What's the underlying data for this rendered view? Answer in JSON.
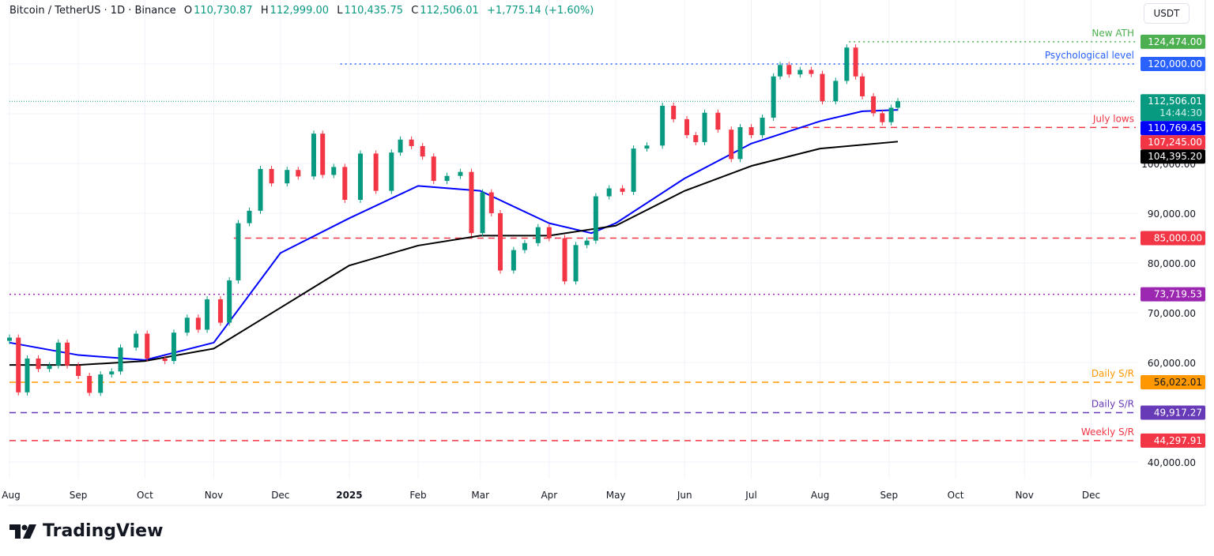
{
  "header": {
    "symbol": "Bitcoin / TetherUS · 1D · Binance",
    "open_label": "O",
    "open": "110,730.87",
    "high_label": "H",
    "high": "112,999.00",
    "low_label": "L",
    "low": "110,435.75",
    "close_label": "C",
    "close": "112,506.01",
    "change": "+1,775.14 (+1.60%)",
    "currency": "USDT"
  },
  "brand": {
    "name": "TradingView"
  },
  "chart_data": {
    "type": "candlestick",
    "title": "Bitcoin / TetherUS · 1D · Binance",
    "ylim": [
      35000,
      130000
    ],
    "y_ticks": [
      40000,
      60000,
      70000,
      80000,
      90000,
      100000
    ],
    "y_tick_labels": [
      "40,000.00",
      "60,000.00",
      "70,000.00",
      "80,000.00",
      "90,000.00",
      "100,000.00"
    ],
    "x_ticks": [
      {
        "date": "2024-08-01",
        "label": "Aug"
      },
      {
        "date": "2024-09-01",
        "label": "Sep"
      },
      {
        "date": "2024-10-01",
        "label": "Oct"
      },
      {
        "date": "2024-11-01",
        "label": "Nov"
      },
      {
        "date": "2024-12-01",
        "label": "Dec"
      },
      {
        "date": "2025-01-01",
        "label": "2025"
      },
      {
        "date": "2025-02-01",
        "label": "Feb"
      },
      {
        "date": "2025-03-01",
        "label": "Mar"
      },
      {
        "date": "2025-04-01",
        "label": "Apr"
      },
      {
        "date": "2025-05-01",
        "label": "May"
      },
      {
        "date": "2025-06-01",
        "label": "Jun"
      },
      {
        "date": "2025-07-01",
        "label": "Jul"
      },
      {
        "date": "2025-08-01",
        "label": "Aug"
      },
      {
        "date": "2025-09-01",
        "label": "Sep"
      },
      {
        "date": "2025-10-01",
        "label": "Oct"
      },
      {
        "date": "2025-11-01",
        "label": "Nov"
      },
      {
        "date": "2025-12-01",
        "label": "Dec"
      }
    ],
    "grid": true,
    "colors": {
      "up": "#089981",
      "down": "#f23645"
    },
    "price": [
      [
        "2024-08-01",
        65000
      ],
      [
        "2024-08-05",
        54000
      ],
      [
        "2024-08-09",
        60800
      ],
      [
        "2024-08-14",
        58700
      ],
      [
        "2024-08-19",
        59400
      ],
      [
        "2024-08-23",
        64000
      ],
      [
        "2024-08-27",
        59400
      ],
      [
        "2024-09-01",
        57300
      ],
      [
        "2024-09-06",
        53900
      ],
      [
        "2024-09-11",
        57600
      ],
      [
        "2024-09-16",
        58200
      ],
      [
        "2024-09-20",
        63000
      ],
      [
        "2024-09-27",
        65800
      ],
      [
        "2024-10-02",
        60800
      ],
      [
        "2024-10-10",
        60300
      ],
      [
        "2024-10-14",
        66000
      ],
      [
        "2024-10-20",
        69000
      ],
      [
        "2024-10-25",
        66600
      ],
      [
        "2024-10-29",
        72700
      ],
      [
        "2024-11-04",
        68000
      ],
      [
        "2024-11-08",
        76500
      ],
      [
        "2024-11-12",
        88000
      ],
      [
        "2024-11-17",
        90500
      ],
      [
        "2024-11-22",
        98900
      ],
      [
        "2024-11-27",
        96000
      ],
      [
        "2024-12-04",
        98700
      ],
      [
        "2024-12-09",
        97400
      ],
      [
        "2024-12-16",
        106000
      ],
      [
        "2024-12-20",
        97700
      ],
      [
        "2024-12-25",
        99300
      ],
      [
        "2024-12-30",
        92700
      ],
      [
        "2025-01-06",
        102000
      ],
      [
        "2025-01-13",
        94500
      ],
      [
        "2025-01-20",
        102200
      ],
      [
        "2025-01-24",
        104800
      ],
      [
        "2025-01-29",
        103500
      ],
      [
        "2025-02-03",
        101400
      ],
      [
        "2025-02-08",
        96500
      ],
      [
        "2025-02-14",
        97500
      ],
      [
        "2025-02-20",
        98300
      ],
      [
        "2025-02-25",
        86000
      ],
      [
        "2025-03-02",
        94200
      ],
      [
        "2025-03-06",
        90000
      ],
      [
        "2025-03-10",
        78500
      ],
      [
        "2025-03-16",
        82600
      ],
      [
        "2025-03-21",
        84000
      ],
      [
        "2025-03-27",
        87200
      ],
      [
        "2025-04-01",
        85000
      ],
      [
        "2025-04-08",
        76300
      ],
      [
        "2025-04-13",
        83600
      ],
      [
        "2025-04-18",
        84500
      ],
      [
        "2025-04-22",
        93400
      ],
      [
        "2025-04-28",
        95000
      ],
      [
        "2025-05-04",
        94300
      ],
      [
        "2025-05-09",
        103000
      ],
      [
        "2025-05-15",
        103600
      ],
      [
        "2025-05-22",
        111600
      ],
      [
        "2025-05-27",
        108900
      ],
      [
        "2025-06-02",
        105700
      ],
      [
        "2025-06-06",
        104300
      ],
      [
        "2025-06-10",
        110200
      ],
      [
        "2025-06-16",
        106800
      ],
      [
        "2025-06-22",
        100900
      ],
      [
        "2025-06-26",
        107300
      ],
      [
        "2025-07-01",
        105700
      ],
      [
        "2025-07-06",
        109200
      ],
      [
        "2025-07-11",
        117500
      ],
      [
        "2025-07-14",
        119800
      ],
      [
        "2025-07-18",
        117900
      ],
      [
        "2025-07-23",
        118800
      ],
      [
        "2025-07-28",
        118000
      ],
      [
        "2025-08-02",
        112500
      ],
      [
        "2025-08-08",
        116600
      ],
      [
        "2025-08-13",
        123300
      ],
      [
        "2025-08-17",
        117500
      ],
      [
        "2025-08-20",
        113500
      ],
      [
        "2025-08-25",
        110100
      ],
      [
        "2025-08-29",
        108300
      ],
      [
        "2025-09-02",
        111200
      ],
      [
        "2025-09-05",
        112506.01
      ]
    ],
    "moving_averages": [
      {
        "color": "#0000ff",
        "last_label": "110,769.45",
        "values": [
          [
            "2024-08-01",
            64000
          ],
          [
            "2024-09-01",
            61500
          ],
          [
            "2024-10-01",
            60500
          ],
          [
            "2024-11-01",
            64000
          ],
          [
            "2024-12-01",
            82000
          ],
          [
            "2025-01-01",
            89000
          ],
          [
            "2025-02-01",
            95500
          ],
          [
            "2025-03-01",
            94500
          ],
          [
            "2025-04-01",
            88000
          ],
          [
            "2025-04-20",
            86000
          ],
          [
            "2025-05-01",
            88000
          ],
          [
            "2025-06-01",
            97000
          ],
          [
            "2025-07-01",
            104000
          ],
          [
            "2025-08-01",
            108500
          ],
          [
            "2025-08-20",
            110500
          ],
          [
            "2025-09-05",
            110769.45
          ]
        ]
      },
      {
        "color": "#000000",
        "last_label": "104,395.20",
        "values": [
          [
            "2024-08-01",
            59500
          ],
          [
            "2024-09-01",
            59500
          ],
          [
            "2024-10-01",
            60300
          ],
          [
            "2024-11-01",
            62800
          ],
          [
            "2024-12-01",
            71000
          ],
          [
            "2025-01-01",
            79500
          ],
          [
            "2025-02-01",
            83500
          ],
          [
            "2025-03-01",
            85500
          ],
          [
            "2025-04-01",
            85500
          ],
          [
            "2025-05-01",
            87500
          ],
          [
            "2025-06-01",
            94500
          ],
          [
            "2025-07-01",
            99500
          ],
          [
            "2025-08-01",
            103000
          ],
          [
            "2025-09-05",
            104395.2
          ]
        ]
      }
    ],
    "levels": [
      {
        "value": 124474,
        "label": "124,474.00",
        "annotation": "New ATH",
        "color": "#4caf50",
        "style": "dotted",
        "from": "2025-08-14"
      },
      {
        "value": 120000,
        "label": "120,000.00",
        "annotation": "Psychological level",
        "color": "#2962ff",
        "style": "dotted",
        "from": "2024-12-28"
      },
      {
        "value": 112506.01,
        "label": "112,506.01",
        "sublabel": "14:44:30",
        "annotation": "",
        "color": "#089981",
        "style": "dotted-thin",
        "from": "2024-08-01"
      },
      {
        "value": 107245,
        "label": "107,245.00",
        "annotation": "July lows",
        "color": "#f23645",
        "style": "dashed",
        "from": "2025-07-09"
      },
      {
        "value": 85000,
        "label": "85,000.00",
        "annotation": "",
        "color": "#f23645",
        "style": "dashed",
        "from": "2024-11-10"
      },
      {
        "value": 73719.53,
        "label": "73,719.53",
        "annotation": "",
        "color": "#9c27b0",
        "style": "dotted",
        "from": "2024-08-01"
      },
      {
        "value": 56022.01,
        "label": "56,022.01",
        "annotation": "Daily S/R",
        "color": "#ff9800",
        "style": "dashed",
        "from": "2024-08-01"
      },
      {
        "value": 49917.27,
        "label": "49,917.27",
        "annotation": "Daily S/R",
        "color": "#673ab7",
        "style": "dashed",
        "from": "2024-08-01"
      },
      {
        "value": 44297.91,
        "label": "44,297.91",
        "annotation": "Weekly S/R",
        "color": "#f23645",
        "style": "dashed",
        "from": "2024-08-01"
      }
    ]
  }
}
